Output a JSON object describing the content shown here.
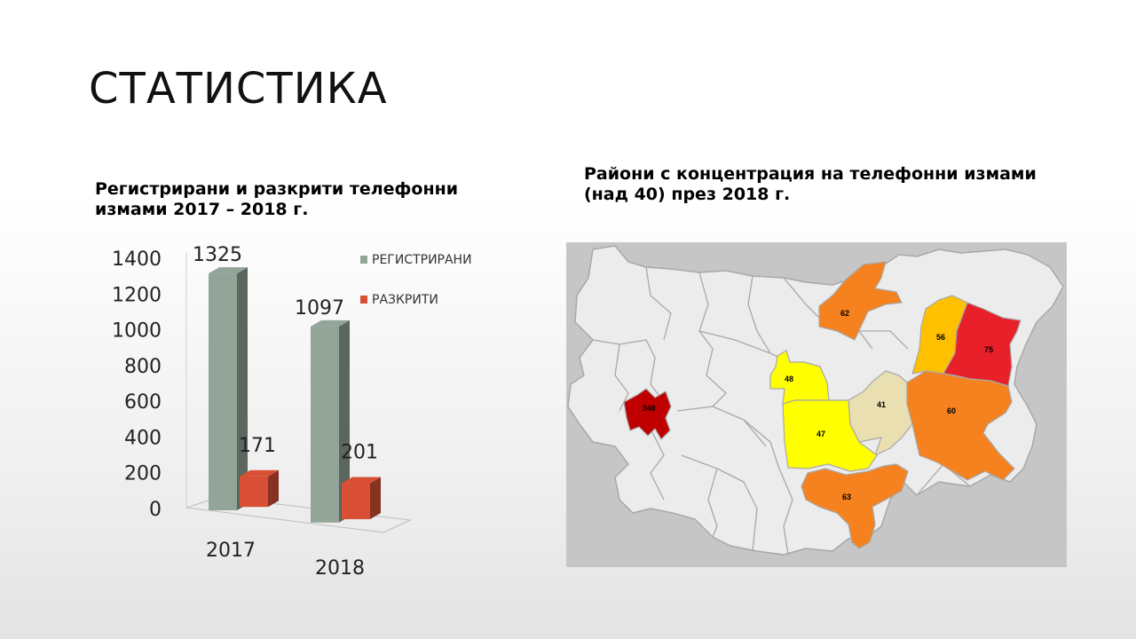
{
  "slide": {
    "title": "СТАТИСТИКА",
    "left_subtitle_line1": "Регистрирани и разкрити телефонни",
    "left_subtitle_line2": "измами 2017 – 2018 г.",
    "right_subtitle_line1": "Райони с концентрация на телефонни измами",
    "right_subtitle_line2": "(над 40) през 2018 г."
  },
  "chart_data": [
    {
      "type": "bar",
      "title": "",
      "categories": [
        "2017",
        "2018"
      ],
      "series": [
        {
          "name": "РЕГИСТРИРАНИ",
          "values": [
            1325,
            1097
          ],
          "color": "#93a598"
        },
        {
          "name": "РАЗКРИТИ",
          "values": [
            171,
            201
          ],
          "color": "#d94f35"
        }
      ],
      "yticks": [
        0,
        200,
        400,
        600,
        800,
        1000,
        1200,
        1400
      ],
      "ylim": [
        0,
        1400
      ],
      "legend_position": "top-right",
      "grid": false,
      "style": "3d-column"
    },
    {
      "type": "choropleth-map",
      "title": "",
      "regions": [
        {
          "id": "sofia",
          "value": 340,
          "color": "#c00000"
        },
        {
          "id": "ruse",
          "value": 62,
          "color": "#f5821f"
        },
        {
          "id": "shumen",
          "value": 56,
          "color": "#ffc000"
        },
        {
          "id": "dobrich",
          "value": 75,
          "color": "#e8202a"
        },
        {
          "id": "lovech",
          "value": 48,
          "color": "#ffff00"
        },
        {
          "id": "gabrovo",
          "value": 41,
          "color": "#eadfb0"
        },
        {
          "id": "stara-zagora",
          "value": 47,
          "color": "#ffff00"
        },
        {
          "id": "varna",
          "value": 60,
          "color": "#f5821f"
        },
        {
          "id": "haskovo",
          "value": 63,
          "color": "#f5821f"
        }
      ],
      "background_color": "#c6c6c6",
      "default_region_color": "#ececec",
      "border_color": "#a8a8a8"
    }
  ]
}
